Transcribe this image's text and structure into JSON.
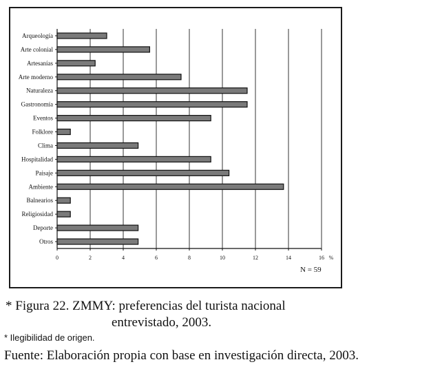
{
  "chart_data": {
    "type": "bar",
    "orientation": "horizontal",
    "categories": [
      "Arqueología",
      "Arte colonial",
      "Artesanías",
      "Arte moderno",
      "Naturaleza",
      "Gastronomía",
      "Eventos",
      "Folklore",
      "Clima",
      "Hospitalidad",
      "Paisaje",
      "Ambiente",
      "Balnearios",
      "Religiosidad",
      "Deporte",
      "Otros"
    ],
    "values": [
      3.0,
      5.6,
      2.3,
      7.5,
      11.5,
      11.5,
      9.3,
      0.8,
      4.9,
      9.3,
      10.4,
      13.7,
      0.8,
      0.8,
      4.9,
      4.9
    ],
    "xticks": [
      "0",
      "2",
      "4",
      "6",
      "8",
      "10",
      "12",
      "14",
      "16"
    ],
    "xlim": [
      0,
      16
    ],
    "unit": "%",
    "annotation": "N = 59",
    "grid": "vertical",
    "bar_color": "#7a7a7a"
  },
  "caption": {
    "line1": "* Figura 22. ZMMY: preferencias del turista nacional",
    "line2": "entrevistado, 2003.",
    "note": "* Ilegibilidad de origen.",
    "source": "Fuente: Elaboración propia con base en investigación directa, 2003."
  }
}
